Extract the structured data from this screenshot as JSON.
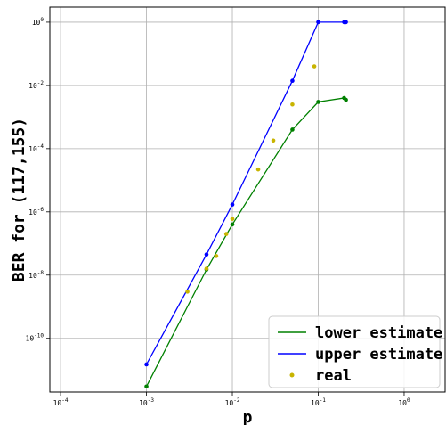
{
  "chart_data": {
    "type": "line",
    "xlabel": "p",
    "ylabel": "BER for (117,155)",
    "x_scale": "log",
    "y_scale": "log",
    "xlim": [
      7.5e-05,
      3
    ],
    "ylim": [
      2e-12,
      3
    ],
    "grid": true,
    "legend_position": "lower-right",
    "x_ticks": [
      {
        "value": 0.0001,
        "base": "10",
        "exp": "-4"
      },
      {
        "value": 0.001,
        "base": "10",
        "exp": "-3"
      },
      {
        "value": 0.01,
        "base": "10",
        "exp": "-2"
      },
      {
        "value": 0.1,
        "base": "10",
        "exp": "-1"
      },
      {
        "value": 1,
        "base": "10",
        "exp": "0"
      }
    ],
    "y_ticks": [
      {
        "value": 1e-10,
        "base": "10",
        "exp": "-10"
      },
      {
        "value": 1e-08,
        "base": "10",
        "exp": "-8"
      },
      {
        "value": 1e-06,
        "base": "10",
        "exp": "-6"
      },
      {
        "value": 0.0001,
        "base": "10",
        "exp": "-4"
      },
      {
        "value": 0.01,
        "base": "10",
        "exp": "-2"
      },
      {
        "value": 1,
        "base": "10",
        "exp": "0"
      }
    ],
    "series": [
      {
        "name": "lower estimate",
        "color": "#008000",
        "style": "line",
        "points": [
          [
            0.001,
            3e-12
          ],
          [
            0.005,
            1.5e-08
          ],
          [
            0.01,
            4e-07
          ],
          [
            0.05,
            0.0004
          ],
          [
            0.1,
            0.003
          ],
          [
            0.2,
            0.004
          ],
          [
            0.21,
            0.0035
          ]
        ]
      },
      {
        "name": "upper estimate",
        "color": "#0000ff",
        "style": "line",
        "points": [
          [
            0.001,
            1.5e-11
          ],
          [
            0.005,
            4.5e-08
          ],
          [
            0.01,
            1.7e-06
          ],
          [
            0.05,
            0.014
          ],
          [
            0.1,
            1
          ],
          [
            0.2,
            1
          ],
          [
            0.21,
            1
          ]
        ]
      },
      {
        "name": "real",
        "color": "#c8b400",
        "style": "scatter",
        "points": [
          [
            0.003,
            3e-09
          ],
          [
            0.005,
            1.6e-08
          ],
          [
            0.0065,
            4e-08
          ],
          [
            0.0085,
            2e-07
          ],
          [
            0.01,
            6e-07
          ],
          [
            0.02,
            2.2e-05
          ],
          [
            0.03,
            0.00018
          ],
          [
            0.05,
            0.0025
          ],
          [
            0.09,
            0.04
          ]
        ]
      }
    ]
  }
}
